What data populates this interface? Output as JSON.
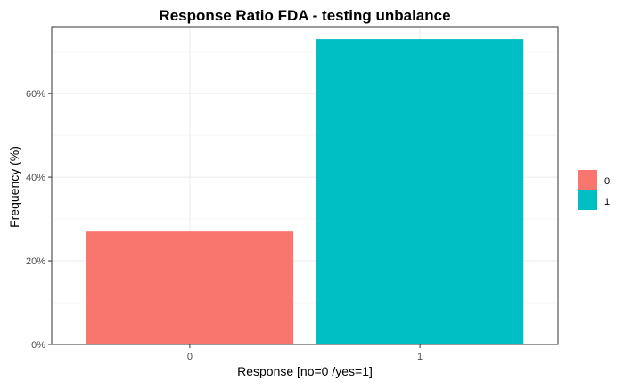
{
  "chart_data": {
    "type": "bar",
    "title": "Response Ratio FDA - testing unbalance",
    "xlabel": "Response [no=0 /yes=1]",
    "ylabel": "Frequency (%)",
    "categories": [
      "0",
      "1"
    ],
    "values": [
      27,
      73
    ],
    "colors": [
      "#F8766D",
      "#00BFC4"
    ],
    "ylim": [
      0,
      76
    ],
    "yticks": [
      0,
      20,
      40,
      60
    ],
    "ytick_labels": [
      "0%",
      "20%",
      "40%",
      "60%"
    ],
    "grid": true,
    "legend": {
      "placement": "right",
      "entries": [
        {
          "label": "0",
          "color": "#F8766D"
        },
        {
          "label": "1",
          "color": "#00BFC4"
        }
      ]
    }
  }
}
